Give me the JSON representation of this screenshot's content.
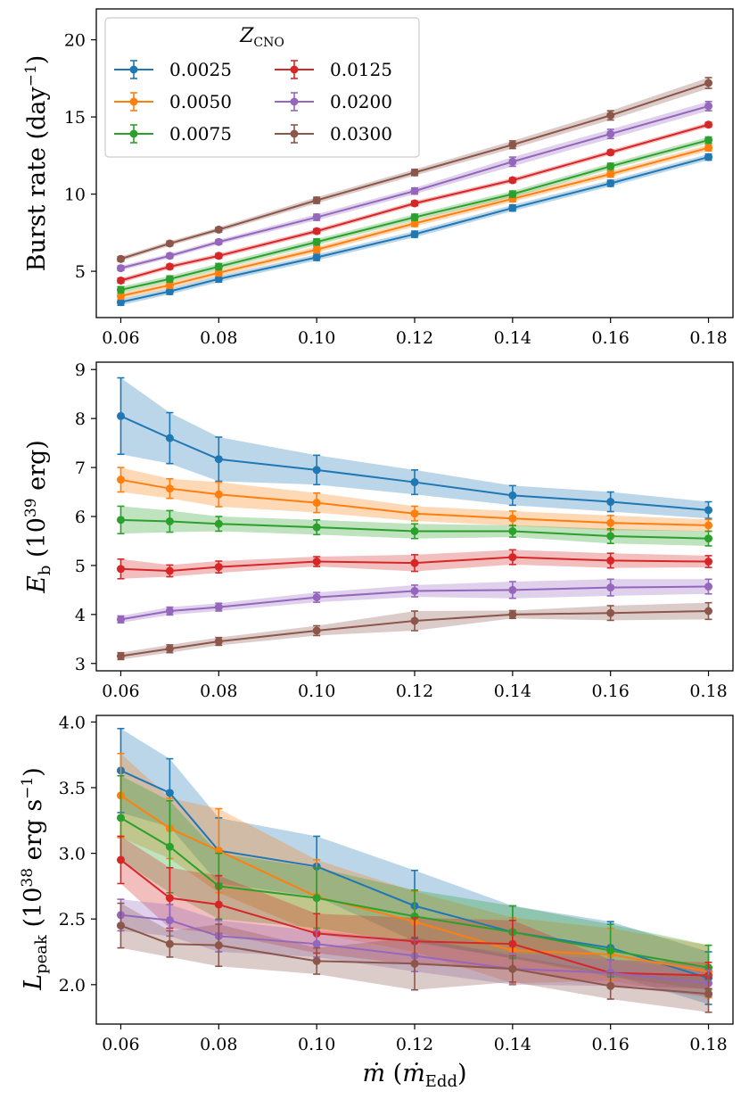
{
  "chart_data": [
    {
      "type": "line",
      "title": "",
      "xlabel": "",
      "ylabel": "Burst rate (day⁻¹)",
      "xlim": [
        0.055,
        0.185
      ],
      "ylim": [
        2,
        22
      ],
      "xticks": [
        "0.06",
        "0.08",
        "0.10",
        "0.12",
        "0.14",
        "0.16",
        "0.18"
      ],
      "yticks": [
        "5",
        "10",
        "15",
        "20"
      ],
      "x": [
        0.06,
        0.07,
        0.08,
        0.1,
        0.12,
        0.14,
        0.16,
        0.18
      ],
      "legend": {
        "title": "Z_CNO",
        "placement": "top-left"
      },
      "series": [
        {
          "name": "0.0025",
          "color": "#1f77b4",
          "values": [
            3.0,
            3.7,
            4.5,
            5.9,
            7.4,
            9.1,
            10.7,
            12.4
          ],
          "err": [
            0.2,
            0.2,
            0.2,
            0.2,
            0.2,
            0.2,
            0.2,
            0.2
          ]
        },
        {
          "name": "0.0050",
          "color": "#ff7f0e",
          "values": [
            3.4,
            4.1,
            4.9,
            6.4,
            8.1,
            9.7,
            11.3,
            13.0
          ],
          "err": [
            0.2,
            0.2,
            0.2,
            0.2,
            0.2,
            0.2,
            0.2,
            0.2
          ]
        },
        {
          "name": "0.0075",
          "color": "#2ca02c",
          "values": [
            3.8,
            4.5,
            5.3,
            6.9,
            8.5,
            10.0,
            11.8,
            13.5
          ],
          "err": [
            0.2,
            0.2,
            0.2,
            0.2,
            0.2,
            0.2,
            0.2,
            0.2
          ]
        },
        {
          "name": "0.0125",
          "color": "#d62728",
          "values": [
            4.4,
            5.3,
            6.0,
            7.6,
            9.4,
            10.9,
            12.7,
            14.5
          ],
          "err": [
            0.15,
            0.15,
            0.15,
            0.15,
            0.15,
            0.15,
            0.15,
            0.15
          ]
        },
        {
          "name": "0.0200",
          "color": "#9467bd",
          "values": [
            5.2,
            6.0,
            6.9,
            8.5,
            10.2,
            12.1,
            13.9,
            15.7
          ],
          "err": [
            0.15,
            0.15,
            0.15,
            0.2,
            0.2,
            0.3,
            0.3,
            0.3
          ]
        },
        {
          "name": "0.0300",
          "color": "#8c564b",
          "values": [
            5.8,
            6.8,
            7.7,
            9.6,
            11.4,
            13.2,
            15.1,
            17.2
          ],
          "err": [
            0.15,
            0.15,
            0.15,
            0.2,
            0.2,
            0.25,
            0.3,
            0.35
          ]
        }
      ]
    },
    {
      "type": "line",
      "title": "",
      "xlabel": "",
      "ylabel": "E_b (10^39 erg)",
      "xlim": [
        0.055,
        0.185
      ],
      "ylim": [
        2.85,
        9.15
      ],
      "xticks": [
        "0.06",
        "0.08",
        "0.10",
        "0.12",
        "0.14",
        "0.16",
        "0.18"
      ],
      "yticks": [
        "3",
        "4",
        "5",
        "6",
        "7",
        "8",
        "9"
      ],
      "x": [
        0.06,
        0.07,
        0.08,
        0.1,
        0.12,
        0.14,
        0.16,
        0.18
      ],
      "series": [
        {
          "name": "0.0025",
          "color": "#1f77b4",
          "values": [
            8.05,
            7.6,
            7.17,
            6.95,
            6.7,
            6.43,
            6.3,
            6.13
          ],
          "err": [
            0.78,
            0.52,
            0.45,
            0.3,
            0.25,
            0.2,
            0.2,
            0.17
          ]
        },
        {
          "name": "0.0050",
          "color": "#ff7f0e",
          "values": [
            6.75,
            6.57,
            6.45,
            6.28,
            6.06,
            5.96,
            5.87,
            5.82
          ],
          "err": [
            0.25,
            0.2,
            0.25,
            0.2,
            0.15,
            0.15,
            0.15,
            0.12
          ]
        },
        {
          "name": "0.0075",
          "color": "#2ca02c",
          "values": [
            5.93,
            5.9,
            5.85,
            5.78,
            5.7,
            5.7,
            5.6,
            5.55
          ],
          "err": [
            0.28,
            0.22,
            0.15,
            0.15,
            0.15,
            0.12,
            0.15,
            0.15
          ]
        },
        {
          "name": "0.0125",
          "color": "#d62728",
          "values": [
            4.93,
            4.89,
            4.97,
            5.08,
            5.05,
            5.17,
            5.1,
            5.08
          ],
          "err": [
            0.2,
            0.12,
            0.12,
            0.1,
            0.17,
            0.15,
            0.15,
            0.12
          ]
        },
        {
          "name": "0.0200",
          "color": "#9467bd",
          "values": [
            3.9,
            4.07,
            4.15,
            4.35,
            4.48,
            4.5,
            4.55,
            4.57
          ],
          "err": [
            0.07,
            0.08,
            0.08,
            0.1,
            0.12,
            0.17,
            0.17,
            0.15
          ]
        },
        {
          "name": "0.0300",
          "color": "#8c564b",
          "values": [
            3.15,
            3.3,
            3.45,
            3.67,
            3.87,
            4.0,
            4.03,
            4.07
          ],
          "err": [
            0.07,
            0.08,
            0.08,
            0.1,
            0.2,
            0.08,
            0.15,
            0.17
          ]
        }
      ]
    },
    {
      "type": "line",
      "title": "",
      "xlabel": "ṁ (ṁ_Edd)",
      "ylabel": "L_peak (10^38 erg s⁻¹)",
      "xlim": [
        0.055,
        0.185
      ],
      "ylim": [
        1.7,
        4.05
      ],
      "xticks": [
        "0.06",
        "0.08",
        "0.10",
        "0.12",
        "0.14",
        "0.16",
        "0.18"
      ],
      "yticks": [
        "2.0",
        "2.5",
        "3.0",
        "3.5",
        "4.0"
      ],
      "x": [
        0.06,
        0.07,
        0.08,
        0.1,
        0.12,
        0.14,
        0.16,
        0.18
      ],
      "series": [
        {
          "name": "0.0025",
          "color": "#1f77b4",
          "values": [
            3.63,
            3.46,
            3.02,
            2.9,
            2.6,
            2.4,
            2.28,
            2.05
          ],
          "err": [
            0.32,
            0.26,
            0.25,
            0.23,
            0.27,
            0.2,
            0.2,
            0.2
          ]
        },
        {
          "name": "0.0050",
          "color": "#ff7f0e",
          "values": [
            3.44,
            3.19,
            3.02,
            2.67,
            2.48,
            2.26,
            2.23,
            2.1
          ],
          "err": [
            0.32,
            0.23,
            0.32,
            0.28,
            0.23,
            0.25,
            0.2,
            0.2
          ]
        },
        {
          "name": "0.0075",
          "color": "#2ca02c",
          "values": [
            3.27,
            3.05,
            2.75,
            2.66,
            2.52,
            2.4,
            2.26,
            2.13
          ],
          "err": [
            0.32,
            0.35,
            0.25,
            0.23,
            0.2,
            0.2,
            0.2,
            0.17
          ]
        },
        {
          "name": "0.0125",
          "color": "#d62728",
          "values": [
            2.95,
            2.66,
            2.61,
            2.39,
            2.33,
            2.31,
            2.09,
            2.07
          ],
          "err": [
            0.18,
            0.23,
            0.22,
            0.15,
            0.18,
            0.18,
            0.1,
            0.1
          ]
        },
        {
          "name": "0.0200",
          "color": "#9467bd",
          "values": [
            2.53,
            2.49,
            2.37,
            2.31,
            2.22,
            2.12,
            2.09,
            2.01
          ],
          "err": [
            0.12,
            0.12,
            0.12,
            0.1,
            0.12,
            0.12,
            0.1,
            0.1
          ]
        },
        {
          "name": "0.0300",
          "color": "#8c564b",
          "values": [
            2.45,
            2.31,
            2.3,
            2.18,
            2.16,
            2.12,
            1.99,
            1.93
          ],
          "err": [
            0.17,
            0.1,
            0.16,
            0.1,
            0.2,
            0.1,
            0.1,
            0.14
          ]
        }
      ]
    }
  ]
}
